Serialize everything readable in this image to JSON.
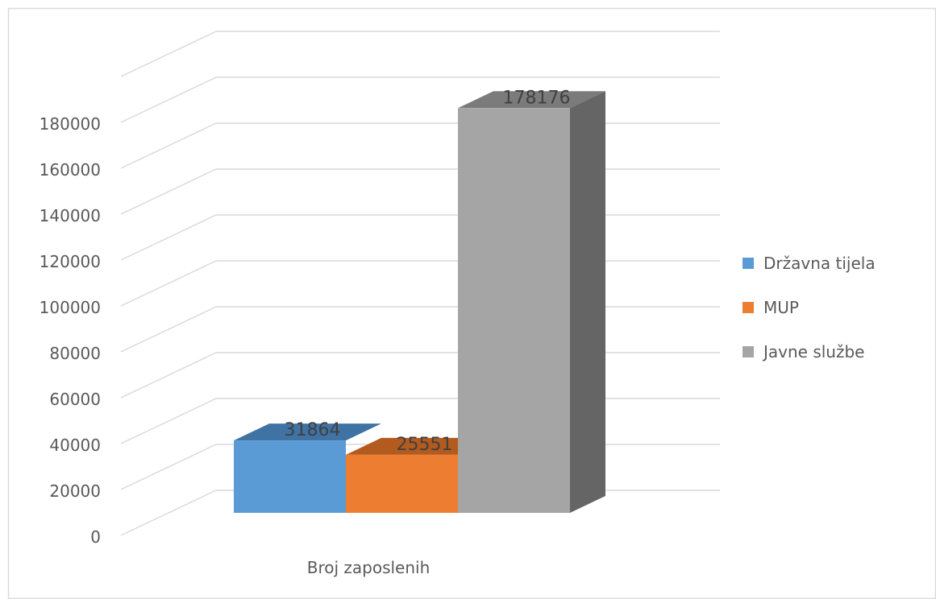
{
  "chart_data": {
    "type": "bar",
    "style": "3d-clustered-column",
    "title": "",
    "categories": [
      "Broj zaposlenih"
    ],
    "series": [
      {
        "name": "Državna tijela",
        "values": [
          31864
        ],
        "color": "#5b9bd5",
        "top_color": "#3f73a4"
      },
      {
        "name": "MUP",
        "values": [
          25551
        ],
        "color": "#ed7d31",
        "top_color": "#b35a1f"
      },
      {
        "name": "Javne službe",
        "values": [
          178176
        ],
        "color": "#a5a5a5",
        "top_color": "#7b7b7b",
        "side_color": "#656565"
      }
    ],
    "data_labels": [
      "31864",
      "25551",
      "178176"
    ],
    "ylim": [
      0,
      180000
    ],
    "y_ticks": [
      0,
      20000,
      40000,
      60000,
      80000,
      100000,
      120000,
      140000,
      160000,
      180000
    ],
    "y_tick_labels": [
      "0",
      "20000",
      "40000",
      "60000",
      "80000",
      "100000",
      "120000",
      "140000",
      "160000",
      "180000"
    ],
    "grid": true,
    "legend_position": "right",
    "frame_color": "#d9d9d9",
    "grid_color": "#d9d9d9",
    "text_color": "#595959",
    "label_color": "#404040"
  }
}
